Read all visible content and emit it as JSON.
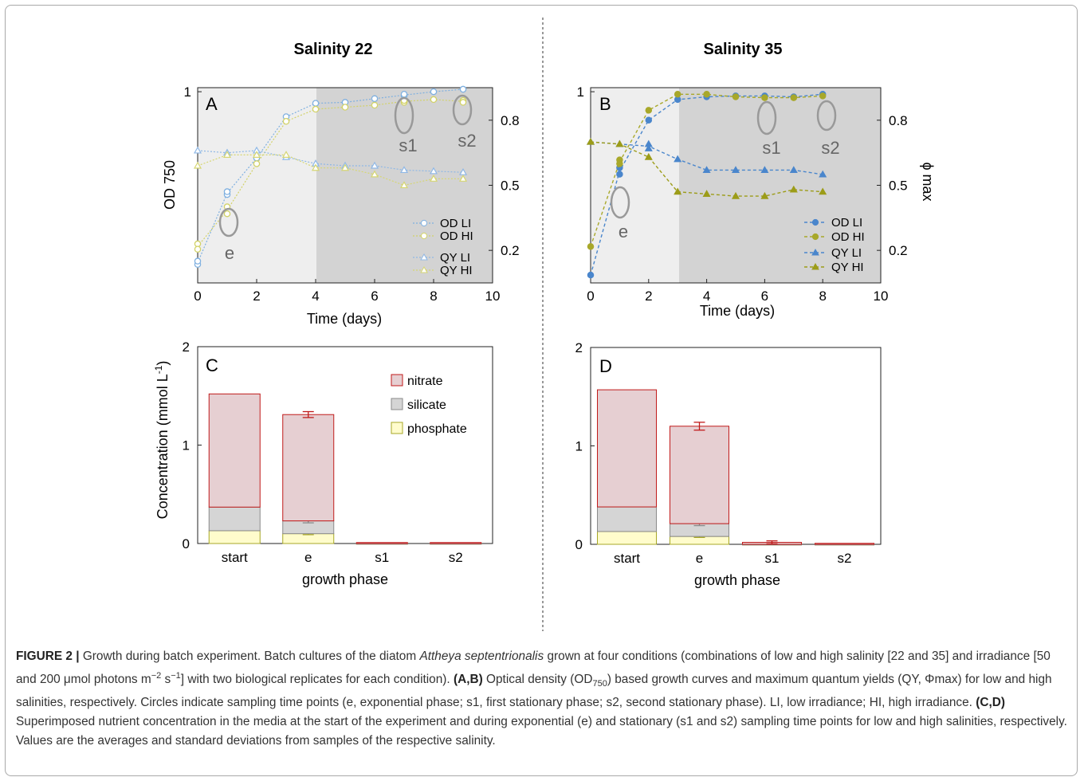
{
  "panels": [
    {
      "id": "A",
      "title": "Salinity 22",
      "xlabel": "Time (days)",
      "ylabel": "OD 750",
      "right_ylabel": "",
      "xticks": [
        "0",
        "2",
        "4",
        "6",
        "8",
        "10"
      ],
      "left_yticks": [
        "1"
      ],
      "right_yticks": [
        "0.8",
        "0.5",
        "0.2"
      ],
      "annotations": [
        "e",
        "s1",
        "s2"
      ],
      "legend": [
        "OD LI",
        "OD HI",
        "QY LI",
        "QY HI"
      ]
    },
    {
      "id": "B",
      "title": "Salinity 35",
      "xlabel": "Time (days)",
      "ylabel": "",
      "right_ylabel": "ϕ max",
      "xticks": [
        "0",
        "2",
        "4",
        "6",
        "8",
        "10"
      ],
      "left_yticks": [
        "1"
      ],
      "right_yticks": [
        "0.8",
        "0.5",
        "0.2"
      ],
      "annotations": [
        "e",
        "s1",
        "s2"
      ],
      "legend": [
        "OD LI",
        "OD HI",
        "QY LI",
        "QY HI"
      ]
    },
    {
      "id": "C",
      "xlabel": "growth phase",
      "ylabel": "Concentration (mmol L",
      "ylabel_sup": "-1",
      "ylabel_end": ")",
      "yticks": [
        "0",
        "1",
        "2"
      ],
      "legend": [
        "nitrate",
        "silicate",
        "phosphate"
      ]
    },
    {
      "id": "D",
      "xlabel": "growth phase",
      "yticks": [
        "0",
        "1",
        "2"
      ]
    }
  ],
  "chart_data": [
    {
      "panel": "A",
      "type": "line",
      "title": "Salinity 22",
      "xlabel": "Time (days)",
      "ylabel": "OD 750",
      "xlim": [
        0,
        10
      ],
      "ylim_left_log": [
        0.1,
        1.05
      ],
      "ylim_right": [
        0.05,
        0.95
      ],
      "shaded_from_day": 4,
      "series": [
        {
          "name": "OD LI",
          "axis": "left",
          "x": [
            0,
            0,
            1,
            1,
            2,
            3,
            4,
            5,
            6,
            7,
            7,
            8,
            9,
            9
          ],
          "y": [
            0.125,
            0.13,
            0.29,
            0.3,
            0.45,
            0.74,
            0.87,
            0.88,
            0.92,
            0.95,
            0.97,
            1.0,
            1.03,
            1.03
          ],
          "color": "#7fb0e0"
        },
        {
          "name": "OD HI",
          "axis": "left",
          "x": [
            0,
            0,
            1,
            1,
            2,
            3,
            4,
            5,
            6,
            7,
            7,
            8,
            9,
            9
          ],
          "y": [
            0.16,
            0.15,
            0.23,
            0.25,
            0.42,
            0.7,
            0.81,
            0.83,
            0.85,
            0.88,
            0.9,
            0.91,
            0.9,
            0.88
          ],
          "color": "#d2d268"
        },
        {
          "name": "QY LI",
          "axis": "right",
          "x": [
            0,
            1,
            2,
            3,
            4,
            5,
            6,
            7,
            8,
            9
          ],
          "y": [
            0.66,
            0.65,
            0.66,
            0.63,
            0.6,
            0.59,
            0.59,
            0.57,
            0.565,
            0.56
          ],
          "color": "#8fb8e6"
        },
        {
          "name": "QY HI",
          "axis": "right",
          "x": [
            0,
            1,
            2,
            3,
            4,
            5,
            6,
            7,
            8,
            9
          ],
          "y": [
            0.59,
            0.64,
            0.64,
            0.64,
            0.58,
            0.58,
            0.55,
            0.5,
            0.53,
            0.53
          ],
          "color": "#d6d672"
        }
      ]
    },
    {
      "panel": "B",
      "type": "line",
      "title": "Salinity 35",
      "xlabel": "Time (days)",
      "ylabel": "ϕ max",
      "xlim": [
        0,
        10
      ],
      "ylim_left_log": [
        0.1,
        1.05
      ],
      "ylim_right": [
        0.05,
        0.95
      ],
      "shaded_from_day": 3,
      "series": [
        {
          "name": "OD LI",
          "axis": "left",
          "x": [
            0,
            1,
            1,
            2,
            3,
            4,
            5,
            6,
            7,
            8
          ],
          "y": [
            0.11,
            0.37,
            0.4,
            0.71,
            0.91,
            0.94,
            0.95,
            0.95,
            0.94,
            0.97
          ],
          "color": "#4a86cc"
        },
        {
          "name": "OD HI",
          "axis": "left",
          "x": [
            0,
            1,
            1,
            2,
            3,
            4,
            5,
            6,
            7,
            8
          ],
          "y": [
            0.155,
            0.42,
            0.44,
            0.8,
            0.97,
            0.97,
            0.94,
            0.93,
            0.93,
            0.95
          ],
          "color": "#a8a82a"
        },
        {
          "name": "QY LI",
          "axis": "right",
          "x": [
            0,
            1,
            2,
            2,
            3,
            4,
            5,
            6,
            7,
            8
          ],
          "y": [
            0.7,
            0.69,
            0.69,
            0.67,
            0.62,
            0.57,
            0.57,
            0.57,
            0.57,
            0.55
          ],
          "color": "#4a86cc"
        },
        {
          "name": "QY HI",
          "axis": "right",
          "x": [
            0,
            1,
            2,
            3,
            4,
            5,
            6,
            7,
            8
          ],
          "y": [
            0.7,
            0.69,
            0.63,
            0.47,
            0.46,
            0.45,
            0.45,
            0.48,
            0.47
          ],
          "color": "#9c9c18"
        }
      ]
    },
    {
      "panel": "C",
      "type": "bar",
      "stacked": true,
      "categories": [
        "start",
        "e",
        "s1",
        "s2"
      ],
      "xlabel": "growth phase",
      "ylabel": "Concentration (mmol L-1)",
      "ylim": [
        0,
        2
      ],
      "series": [
        {
          "name": "phosphate",
          "values": [
            0.13,
            0.1,
            0.0,
            0.0
          ],
          "error": [
            0.0,
            0.01,
            0.0,
            0.0
          ],
          "color": "#fffccc",
          "stroke": "#a7a727"
        },
        {
          "name": "silicate",
          "values": [
            0.24,
            0.13,
            0.0,
            0.0
          ],
          "error": [
            0.0,
            0.02,
            0.0,
            0.0
          ],
          "color": "#d5d5d5",
          "stroke": "#8a8a8a"
        },
        {
          "name": "nitrate",
          "values": [
            1.15,
            1.08,
            0.01,
            0.01
          ],
          "error": [
            0.0,
            0.03,
            0.0,
            0.0
          ],
          "color": "#e6cfd2",
          "stroke": "#c01a1a"
        }
      ],
      "legend_position": "top-right"
    },
    {
      "panel": "D",
      "type": "bar",
      "stacked": true,
      "categories": [
        "start",
        "e",
        "s1",
        "s2"
      ],
      "xlabel": "growth phase",
      "ylim": [
        0,
        2
      ],
      "series": [
        {
          "name": "phosphate",
          "values": [
            0.13,
            0.08,
            0.0,
            0.0
          ],
          "error": [
            0.0,
            0.01,
            0.0,
            0.0
          ],
          "color": "#fffccc",
          "stroke": "#a7a727"
        },
        {
          "name": "silicate",
          "values": [
            0.25,
            0.13,
            0.0,
            0.0
          ],
          "error": [
            0.0,
            0.02,
            0.0,
            0.0
          ],
          "color": "#d5d5d5",
          "stroke": "#8a8a8a"
        },
        {
          "name": "nitrate",
          "values": [
            1.19,
            0.99,
            0.02,
            0.01
          ],
          "error": [
            0.0,
            0.04,
            0.015,
            0.0
          ],
          "color": "#e6cfd2",
          "stroke": "#c01a1a"
        }
      ]
    }
  ],
  "caption": {
    "figure_label": "FIGURE 2 |",
    "p1": " Growth during batch experiment. Batch cultures of the diatom ",
    "species": "Attheya septentrionalis",
    "p2": " grown at four conditions (combinations of low and high salinity [22 and 35] and irradiance [50 and 200 μmol photons m",
    "sup1": "−2",
    "p3": " s",
    "sup2": "−1",
    "p4": "] with two biological replicates for each condition). ",
    "bold_ab": "(A,B)",
    "p5": " Optical density (OD",
    "sub1": "750",
    "p6": ") based growth curves and maximum quantum yields (QY, Φmax) for low and high salinities, respectively. Circles indicate sampling time points (e, exponential phase; s1, first stationary phase; s2, second stationary phase). LI, low irradiance; HI, high irradiance. ",
    "bold_cd": "(C,D)",
    "p7": " Superimposed nutrient concentration in the media at the start of the experiment and during exponential (e) and stationary (s1 and s2) sampling time points for low and high salinities, respectively. Values are the averages and standard deviations from samples of the respective salinity."
  }
}
